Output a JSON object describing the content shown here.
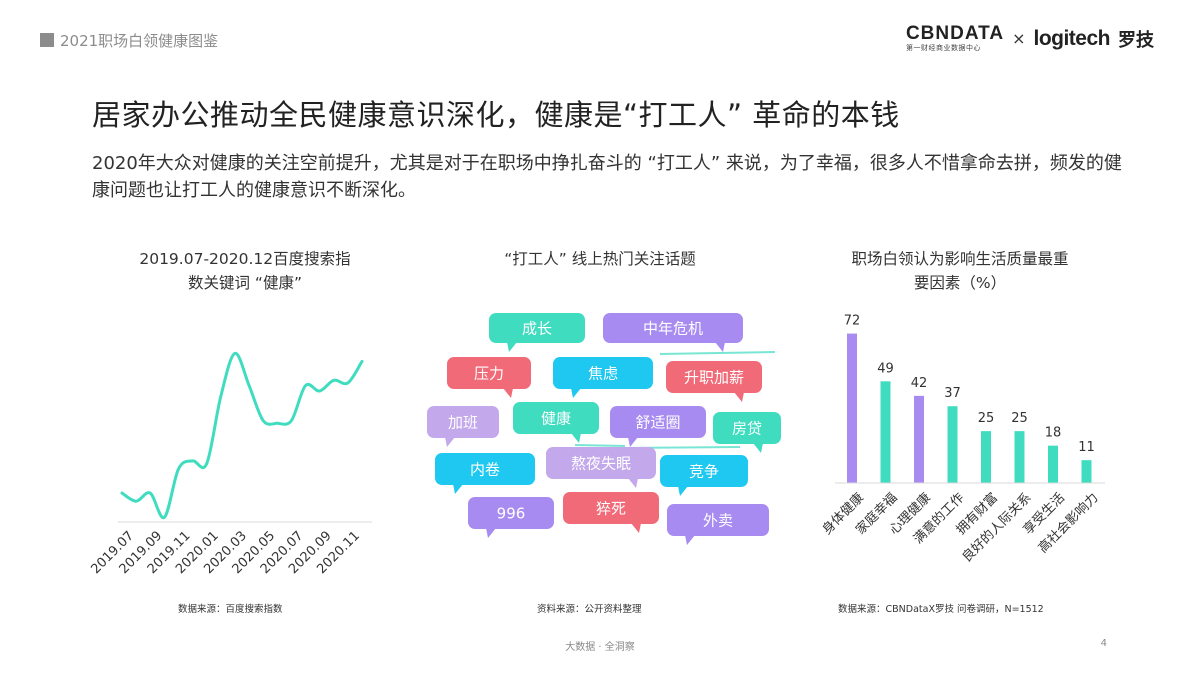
{
  "header": {
    "title": "2021职场白领健康图鉴"
  },
  "logo": {
    "cbndata": "CBNDATA",
    "cbndata_sub": "第一财经商业数据中心",
    "times": "×",
    "logitech": "logitech",
    "logitech_cn": "罗技"
  },
  "main_title": "居家办公推动全民健康意识深化，健康是“打工人” 革命的本钱",
  "intro_text": "2020年大众对健康的关注空前提升，尤其是对于在职场中挣扎奋斗的 “打工人” 来说，为了幸福，很多人不惜拿命去拼，频发的健康问题也让打工人的健康意识不断深化。",
  "colors": {
    "teal": "#40dcc0",
    "purple": "#a78bf0",
    "cyan": "#1ec8f0",
    "red": "#f06a78",
    "lavender": "#c3a8ec",
    "gray_text": "#8c8c8c"
  },
  "panel1": {
    "title_line1": "2019.07-2020.12百度搜索指",
    "title_line2": "数关键词 “健康”",
    "source": "数据来源：百度搜索指数"
  },
  "panel2": {
    "title": "“打工人” 线上热门关注话题",
    "source": "资料来源：公开资料整理",
    "bubbles": [
      {
        "label": "成长",
        "color": "#40dcc0"
      },
      {
        "label": "中年危机",
        "color": "#a78bf0"
      },
      {
        "label": "压力",
        "color": "#f06a78"
      },
      {
        "label": "焦虑",
        "color": "#1ec8f0"
      },
      {
        "label": "升职加薪",
        "color": "#f06a78"
      },
      {
        "label": "加班",
        "color": "#c3a8ec"
      },
      {
        "label": "健康",
        "color": "#40dcc0"
      },
      {
        "label": "舒适圈",
        "color": "#a78bf0"
      },
      {
        "label": "房贷",
        "color": "#40dcc0"
      },
      {
        "label": "内卷",
        "color": "#1ec8f0"
      },
      {
        "label": "熬夜失眠",
        "color": "#c3a8ec"
      },
      {
        "label": "竞争",
        "color": "#1ec8f0"
      },
      {
        "label": "996",
        "color": "#a78bf0"
      },
      {
        "label": "猝死",
        "color": "#f06a78"
      },
      {
        "label": "外卖",
        "color": "#a78bf0"
      }
    ]
  },
  "panel3": {
    "title_line1": "职场白领认为影响生活质量最重",
    "title_line2": "要因素（%）",
    "source": "数据来源：CBNDataX罗技 问卷调研，N=1512"
  },
  "footer": {
    "text": "大数据 · 全洞察",
    "page": "4"
  },
  "chart_data": [
    {
      "type": "line",
      "title": "2019.07-2020.12百度搜索指数关键词 “健康”",
      "x_ticks": [
        "2019.07",
        "2019.09",
        "2019.11",
        "2020.01",
        "2020.03",
        "2020.05",
        "2020.07",
        "2020.09",
        "2020.11"
      ],
      "x": [
        "2019.07",
        "2019.08",
        "2019.09",
        "2019.10",
        "2019.11",
        "2019.12",
        "2020.01",
        "2020.02",
        "2020.03",
        "2020.04",
        "2020.05",
        "2020.06",
        "2020.07",
        "2020.08",
        "2020.09",
        "2020.10",
        "2020.11",
        "2020.12"
      ],
      "series": [
        {
          "values": [
            10,
            7,
            10,
            1,
            19,
            22,
            21,
            46,
            62,
            50,
            37,
            36,
            37,
            50,
            48,
            52,
            51,
            59
          ]
        }
      ],
      "ylim": [
        0,
        80
      ],
      "color": "#40dcc0"
    },
    {
      "type": "bar",
      "title": "职场白领认为影响生活质量最重要因素（%）",
      "categories": [
        "身体健康",
        "家庭幸福",
        "心理健康",
        "满意的工作",
        "拥有财富",
        "良好的人际关系",
        "享受生活",
        "高社会影响力"
      ],
      "values": [
        72,
        49,
        42,
        37,
        25,
        25,
        18,
        11
      ],
      "colors": [
        "#a78bf0",
        "#40dcc0",
        "#a78bf0",
        "#40dcc0",
        "#40dcc0",
        "#40dcc0",
        "#40dcc0",
        "#40dcc0"
      ],
      "ylim": [
        0,
        80
      ]
    }
  ]
}
